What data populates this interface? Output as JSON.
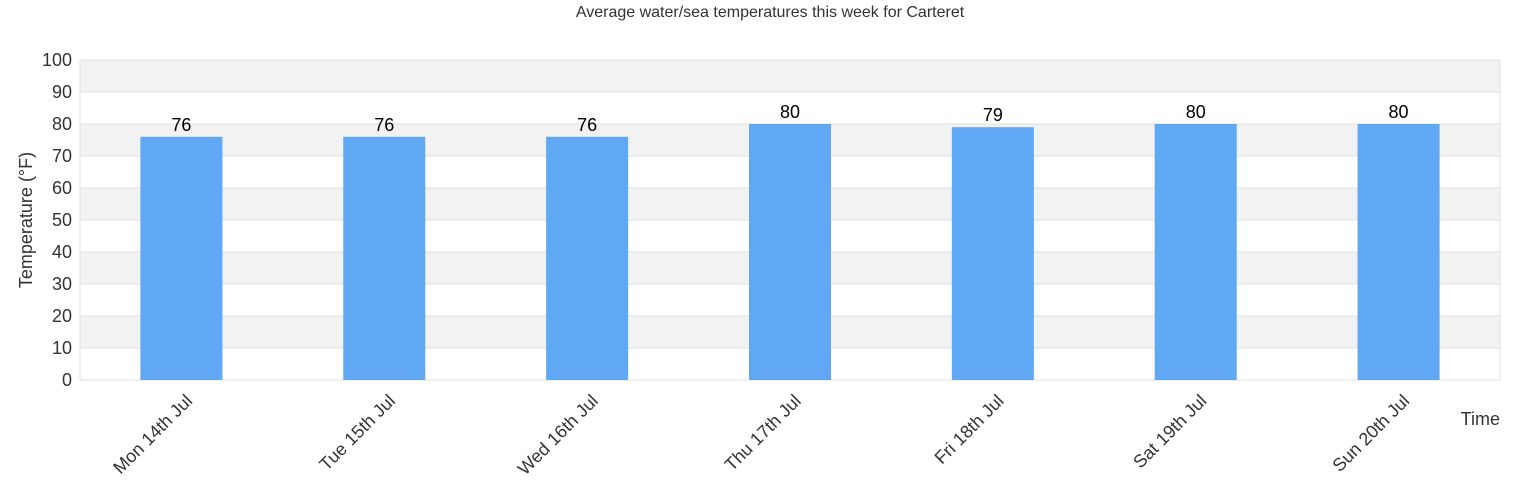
{
  "chart_data": {
    "type": "bar",
    "title": "Average water/sea temperatures this week for Carteret",
    "xlabel": "Time",
    "ylabel": "Temperature (°F)",
    "categories": [
      "Mon 14th Jul",
      "Tue 15th Jul",
      "Wed 16th Jul",
      "Thu 17th Jul",
      "Fri 18th Jul",
      "Sat 19th Jul",
      "Sun 20th Jul"
    ],
    "values": [
      76,
      76,
      76,
      80,
      79,
      80,
      80
    ],
    "ylim": [
      0,
      100
    ],
    "yticks": [
      "0",
      "10",
      "20",
      "30",
      "40",
      "50",
      "60",
      "70",
      "80",
      "90",
      "100"
    ],
    "bar_color": "#60a7f4",
    "band_color": "#f2f2f2",
    "grid_color": "#e0e0e0",
    "grid": true,
    "legend": false
  }
}
